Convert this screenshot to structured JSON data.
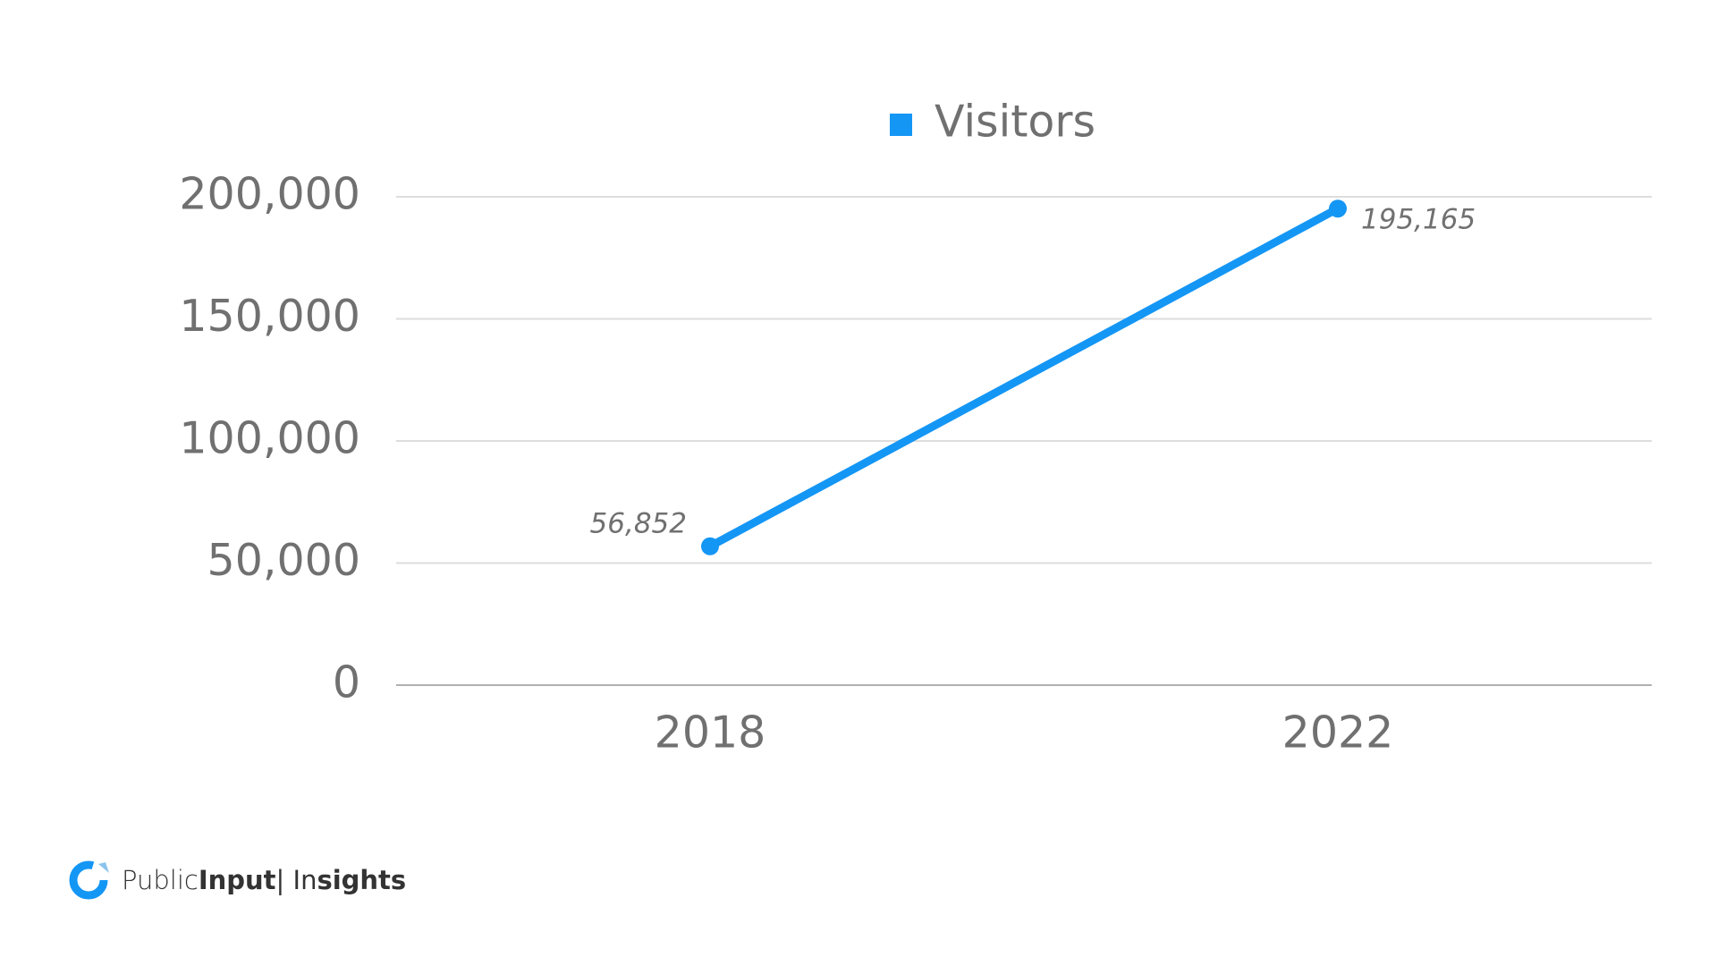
{
  "chart_data": {
    "type": "line",
    "categories": [
      "2018",
      "2022"
    ],
    "series": [
      {
        "name": "Visitors",
        "color": "#1496f5",
        "values": [
          56852,
          195165
        ],
        "value_labels": [
          "56,852",
          "195,165"
        ]
      }
    ],
    "ylim": [
      0,
      200000
    ],
    "yticks": [
      0,
      {
        "value": 50000,
        "label": "50,000"
      },
      {
        "value": 100000,
        "label": "100,000"
      },
      {
        "value": 150000,
        "label": "150,000"
      },
      {
        "value": 200000,
        "label": "200,000"
      }
    ],
    "grid": true,
    "legend": "top"
  },
  "logo": {
    "parts": [
      "Public",
      "Input",
      "| In",
      "sights"
    ]
  }
}
